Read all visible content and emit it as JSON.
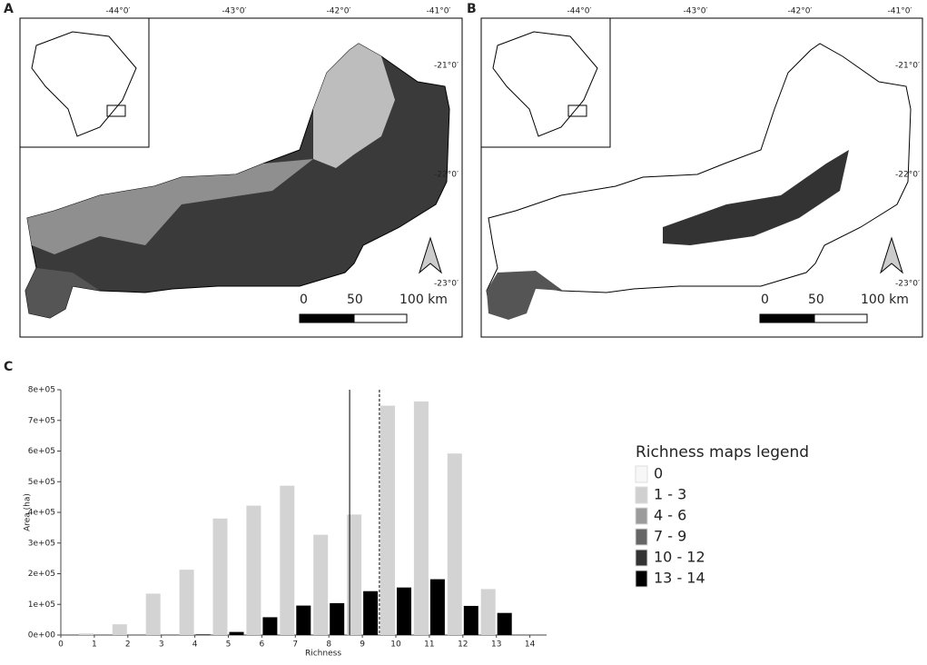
{
  "panels": [
    "A",
    "B",
    "C"
  ],
  "maps": [
    {
      "lon_labels": [
        "-44°0′",
        "-43°0′",
        "-42°0′",
        "-41°0′"
      ],
      "lat_labels": [
        "-21°0′",
        "-22°0′",
        "-23°0′"
      ],
      "scale_labels": [
        "0",
        "50",
        "100 km"
      ]
    },
    {
      "lon_labels": [
        "-44°0′",
        "-43°0′",
        "-42°0′",
        "-41°0′"
      ],
      "lat_labels": [
        "-21°0′",
        "-22°0′",
        "-23°0′"
      ],
      "scale_labels": [
        "0",
        "50",
        "100 km"
      ]
    }
  ],
  "legend": {
    "title": "Richness maps legend",
    "items": [
      {
        "label": "0",
        "color": "#f7f7f7"
      },
      {
        "label": "1 - 3",
        "color": "#d0d0d0"
      },
      {
        "label": "4 - 6",
        "color": "#9b9b9b"
      },
      {
        "label": "7 - 9",
        "color": "#666666"
      },
      {
        "label": "10 - 12",
        "color": "#333333"
      },
      {
        "label": "13 - 14",
        "color": "#000000"
      }
    ]
  },
  "chart_data": {
    "type": "bar",
    "x_label": "Richness",
    "y_label": "Area (ha)",
    "x": [
      0,
      1,
      2,
      3,
      4,
      5,
      6,
      7,
      8,
      9,
      10,
      11,
      12,
      13,
      14
    ],
    "series": [
      {
        "color": "#d3d3d3",
        "values": [
          0,
          5000,
          35000,
          135000,
          213000,
          380000,
          422000,
          487000,
          327000,
          393000,
          748000,
          762000,
          592000,
          150000,
          0
        ]
      },
      {
        "color": "#000000",
        "values": [
          0,
          0,
          0,
          0,
          2000,
          10000,
          58000,
          96000,
          104000,
          143000,
          155000,
          182000,
          95000,
          72000,
          0
        ]
      }
    ],
    "vlines": [
      {
        "value": 8.62,
        "style": "solid"
      },
      {
        "value": 9.51,
        "style": "dashed"
      }
    ],
    "xlim": [
      0,
      14.5
    ],
    "xticks": [
      0,
      1,
      2,
      3,
      4,
      5,
      6,
      7,
      8,
      9,
      10,
      11,
      12,
      13,
      14
    ],
    "ylim": [
      0,
      800000
    ],
    "yticks": [
      {
        "value": 0,
        "label": "0e+00"
      },
      {
        "value": 100000,
        "label": "1e+05"
      },
      {
        "value": 200000,
        "label": "2e+05"
      },
      {
        "value": 300000,
        "label": "3e+05"
      },
      {
        "value": 400000,
        "label": "4e+05"
      },
      {
        "value": 500000,
        "label": "5e+05"
      },
      {
        "value": 600000,
        "label": "6e+05"
      },
      {
        "value": 700000,
        "label": "7e+05"
      },
      {
        "value": 800000,
        "label": "8e+05"
      }
    ]
  }
}
